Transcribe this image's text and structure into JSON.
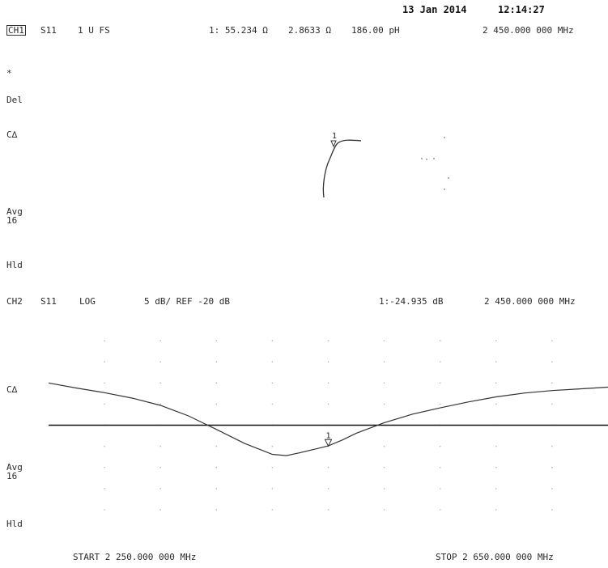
{
  "header": {
    "date": "13 Jan 2014",
    "time": "12:14:27"
  },
  "ch1": {
    "label": "CH1",
    "param": "S11",
    "format": "1 U FS",
    "marker_readout": "1: 55.234 Ω",
    "reactance": "2.8633 Ω",
    "equivalent": "186.00 pH",
    "frequency": "2 450.000 000 MHz",
    "annotations": [
      "*",
      "Del",
      "C∆",
      "Avg",
      "16",
      "Hld"
    ]
  },
  "ch2": {
    "label": "CH2",
    "param": "S11",
    "format": "LOG",
    "scale": "5 dB/ REF -20 dB",
    "marker_readout": "1:-24.935 dB",
    "frequency": "2 450.000 000 MHz",
    "annotations": [
      "C∆",
      "Avg",
      "16",
      "Hld"
    ]
  },
  "footer": {
    "start": "START 2 250.000 000 MHz",
    "stop": "STOP 2 650.000 000 MHz"
  },
  "chart_data": [
    {
      "type": "line",
      "title": "CH1 S11 1 U FS (Smith chart)",
      "marker": {
        "label": "1",
        "resistance_ohm": 55.234,
        "reactance_ohm": 2.8633,
        "inductance_pH": 186.0,
        "frequency_MHz": 2450.0
      }
    },
    {
      "type": "line",
      "title": "CH2 S11 LOG 5 dB/REF -20 dB",
      "xlabel": "Frequency (MHz)",
      "ylabel": "dB",
      "xlim": [
        2250,
        2650
      ],
      "ylim": [
        -45,
        5
      ],
      "ref_level": -20,
      "scale_per_div": 5,
      "x": [
        2250,
        2270,
        2290,
        2310,
        2330,
        2350,
        2370,
        2390,
        2410,
        2420,
        2430,
        2440,
        2450,
        2460,
        2470,
        2490,
        2510,
        2530,
        2550,
        2570,
        2590,
        2610,
        2630,
        2650
      ],
      "y": [
        -10.0,
        -11.2,
        -12.3,
        -13.6,
        -15.3,
        -17.8,
        -21.0,
        -24.3,
        -26.9,
        -27.2,
        -26.5,
        -25.7,
        -24.9,
        -23.5,
        -21.9,
        -19.4,
        -17.4,
        -15.9,
        -14.5,
        -13.3,
        -12.4,
        -11.8,
        -11.4,
        -11.0
      ],
      "marker": {
        "label": "1",
        "x": 2450,
        "y": -24.935
      }
    }
  ]
}
